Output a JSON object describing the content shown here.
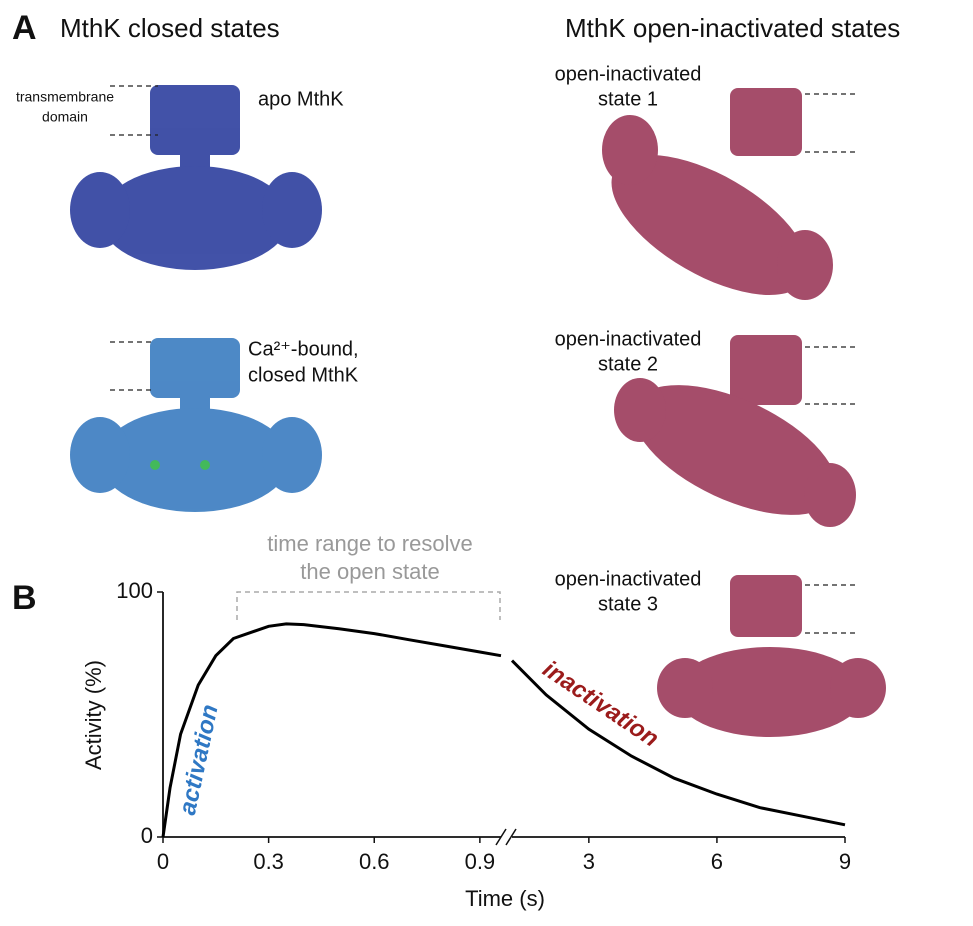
{
  "panel_a": {
    "label": "A",
    "left_title": "MthK closed states",
    "right_title": "MthK open-inactivated states",
    "tm_label": [
      "transmembrane",
      "domain"
    ],
    "closed": [
      {
        "label": [
          "apo MthK"
        ]
      },
      {
        "label": [
          "Ca²⁺-bound,",
          "closed MthK"
        ]
      }
    ],
    "open_inactivated": [
      {
        "label": [
          "open-inactivated",
          "state 1"
        ]
      },
      {
        "label": [
          "open-inactivated",
          "state 2"
        ]
      },
      {
        "label": [
          "open-inactivated",
          "state 3"
        ]
      }
    ]
  },
  "panel_b": {
    "label": "B",
    "chart_data": {
      "type": "line",
      "color": "#000000",
      "ylabel": "Activity (%)",
      "xlabel": "Time (s)",
      "ylim": [
        0,
        100
      ],
      "yticks": [
        0,
        100
      ],
      "segments": [
        {
          "xlim": [
            0,
            0.96
          ],
          "xticks": [
            0,
            0.3,
            0.6,
            0.9
          ],
          "x": [
            0,
            0.02,
            0.05,
            0.1,
            0.15,
            0.2,
            0.3,
            0.35,
            0.4,
            0.5,
            0.6,
            0.7,
            0.8,
            0.9,
            0.96
          ],
          "values": [
            0,
            20,
            42,
            62,
            74,
            81,
            86,
            87,
            86.7,
            85,
            83,
            80.5,
            78,
            75.5,
            74
          ]
        },
        {
          "xlim": [
            1.2,
            9
          ],
          "xticks": [
            3,
            6,
            9
          ],
          "x": [
            1.2,
            2,
            3,
            4,
            5,
            6,
            7,
            8,
            9
          ],
          "values": [
            72,
            58,
            44,
            33,
            24,
            17.5,
            12,
            8.5,
            5
          ]
        }
      ],
      "annotations": {
        "activation": "activation",
        "inactivation": "inactivation",
        "time_range": [
          "time range to resolve",
          "the open state"
        ]
      }
    }
  }
}
